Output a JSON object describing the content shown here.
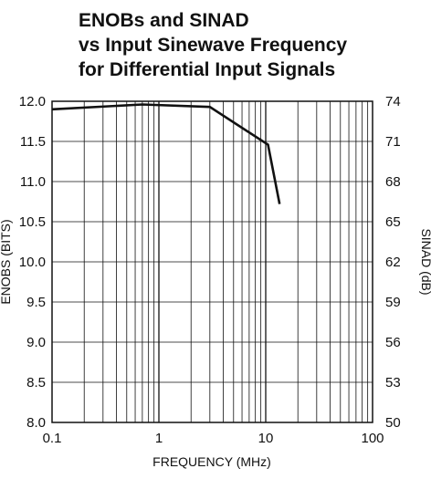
{
  "chart_data": {
    "type": "line",
    "title": [
      "ENOBs and SINAD",
      "vs Input Sinewave Frequency",
      "for Differential Input Signals"
    ],
    "xlabel": "FREQUENCY (MHz)",
    "ylabel": "ENOBS (BITS)",
    "y2label": "SINAD (dB)",
    "x_scale": "log",
    "xlim": [
      0.1,
      100
    ],
    "ylim": [
      8.0,
      12.0
    ],
    "y2lim": [
      50,
      74
    ],
    "grid": true,
    "legend": "none",
    "x_ticks": [
      {
        "value": 0.1,
        "label": "0.1"
      },
      {
        "value": 1,
        "label": "1"
      },
      {
        "value": 10,
        "label": "10"
      },
      {
        "value": 100,
        "label": "100"
      }
    ],
    "y_ticks": [
      {
        "value": 12.0,
        "label": "12.0"
      },
      {
        "value": 11.5,
        "label": "11.5"
      },
      {
        "value": 11.0,
        "label": "11.0"
      },
      {
        "value": 10.5,
        "label": "10.5"
      },
      {
        "value": 10.0,
        "label": "10.0"
      },
      {
        "value": 9.5,
        "label": "9.5"
      },
      {
        "value": 9.0,
        "label": "9.0"
      },
      {
        "value": 8.5,
        "label": "8.5"
      },
      {
        "value": 8.0,
        "label": "8.0"
      }
    ],
    "y2_ticks": [
      {
        "value": 74,
        "label": "74"
      },
      {
        "value": 71,
        "label": "71"
      },
      {
        "value": 68,
        "label": "68"
      },
      {
        "value": 65,
        "label": "65"
      },
      {
        "value": 62,
        "label": "62"
      },
      {
        "value": 59,
        "label": "59"
      },
      {
        "value": 56,
        "label": "56"
      },
      {
        "value": 53,
        "label": "53"
      },
      {
        "value": 50,
        "label": "50"
      }
    ],
    "series": [
      {
        "x": [
          0.1,
          0.7,
          3.0,
          10.5,
          13.5
        ],
        "y": [
          11.9,
          11.96,
          11.93,
          11.46,
          10.72
        ]
      }
    ],
    "colors": {
      "line": "#111111",
      "grid": "#111111"
    }
  }
}
